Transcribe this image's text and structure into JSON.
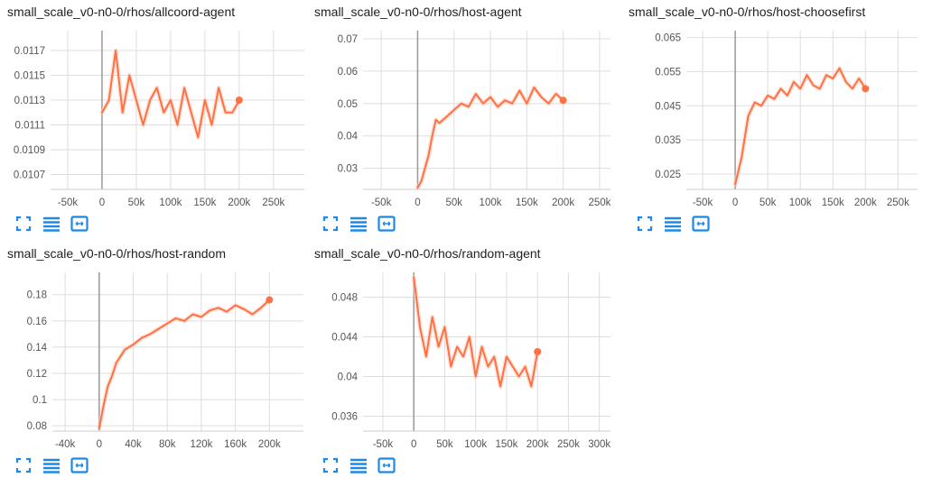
{
  "colors": {
    "line": "#ff7043",
    "raw": "#ffccbc",
    "grid": "#dddddd",
    "axis": "#999999",
    "icon": "#1e88e5"
  },
  "toolbar_icons": [
    "expand-icon",
    "data-table-icon",
    "fit-domain-icon"
  ],
  "chart_data": [
    {
      "type": "line",
      "title": "small_scale_v0-n0-0/rhos/allcoord-agent",
      "xticks": [
        -50000,
        0,
        50000,
        100000,
        150000,
        200000,
        250000
      ],
      "xtick_labels": [
        "-50k",
        "0",
        "50k",
        "100k",
        "150k",
        "200k",
        "250k"
      ],
      "yticks": [
        0.0107,
        0.0109,
        0.0111,
        0.0113,
        0.0115,
        0.0117
      ],
      "ytick_labels": [
        "0.0107",
        "0.0109",
        "0.0111",
        "0.0113",
        "0.0115",
        "0.0117"
      ],
      "xlim": [
        -75000,
        295000
      ],
      "ylim": [
        0.01058,
        0.01186
      ],
      "series": [
        {
          "x": [
            0,
            10000,
            20000,
            30000,
            40000,
            50000,
            60000,
            70000,
            80000,
            90000,
            100000,
            110000,
            120000,
            130000,
            140000,
            150000,
            160000,
            170000,
            180000,
            190000,
            200000
          ],
          "y": [
            0.0112,
            0.0113,
            0.0117,
            0.0112,
            0.0115,
            0.0113,
            0.0111,
            0.0113,
            0.0114,
            0.0112,
            0.0113,
            0.0111,
            0.0114,
            0.0112,
            0.011,
            0.0113,
            0.0111,
            0.0114,
            0.0112,
            0.0112,
            0.0113
          ]
        }
      ]
    },
    {
      "type": "line",
      "title": "small_scale_v0-n0-0/rhos/host-agent",
      "xticks": [
        -50000,
        0,
        50000,
        100000,
        150000,
        200000,
        250000
      ],
      "xtick_labels": [
        "-50k",
        "0",
        "50k",
        "100k",
        "150k",
        "200k",
        "250k"
      ],
      "yticks": [
        0.03,
        0.04,
        0.05,
        0.06,
        0.07
      ],
      "ytick_labels": [
        "0.03",
        "0.04",
        "0.05",
        "0.06",
        "0.07"
      ],
      "xlim": [
        -75000,
        265000
      ],
      "ylim": [
        0.0235,
        0.0725
      ],
      "series": [
        {
          "x": [
            0,
            5000,
            10000,
            15000,
            20000,
            25000,
            30000,
            40000,
            50000,
            60000,
            70000,
            80000,
            90000,
            100000,
            110000,
            120000,
            130000,
            140000,
            150000,
            160000,
            170000,
            180000,
            190000,
            200000
          ],
          "y": [
            0.024,
            0.026,
            0.03,
            0.034,
            0.04,
            0.045,
            0.044,
            0.046,
            0.048,
            0.05,
            0.049,
            0.053,
            0.05,
            0.052,
            0.049,
            0.051,
            0.05,
            0.054,
            0.05,
            0.055,
            0.052,
            0.05,
            0.053,
            0.051
          ]
        }
      ]
    },
    {
      "type": "line",
      "title": "small_scale_v0-n0-0/rhos/host-choosefirst",
      "xticks": [
        -50000,
        0,
        50000,
        100000,
        150000,
        200000,
        250000
      ],
      "xtick_labels": [
        "-50k",
        "0",
        "50k",
        "100k",
        "150k",
        "200k",
        "250k"
      ],
      "yticks": [
        0.025,
        0.035,
        0.045,
        0.055,
        0.065
      ],
      "ytick_labels": [
        "0.025",
        "0.035",
        "0.045",
        "0.055",
        "0.065"
      ],
      "xlim": [
        -75000,
        280000
      ],
      "ylim": [
        0.0205,
        0.067
      ],
      "series": [
        {
          "x": [
            0,
            5000,
            10000,
            15000,
            20000,
            30000,
            40000,
            50000,
            60000,
            70000,
            80000,
            90000,
            100000,
            110000,
            120000,
            130000,
            140000,
            150000,
            160000,
            170000,
            180000,
            190000,
            200000
          ],
          "y": [
            0.022,
            0.026,
            0.03,
            0.036,
            0.042,
            0.046,
            0.045,
            0.048,
            0.047,
            0.05,
            0.048,
            0.052,
            0.05,
            0.054,
            0.051,
            0.05,
            0.054,
            0.053,
            0.056,
            0.052,
            0.05,
            0.053,
            0.05
          ]
        }
      ]
    },
    {
      "type": "line",
      "title": "small_scale_v0-n0-0/rhos/host-random",
      "xticks": [
        -40000,
        0,
        40000,
        80000,
        120000,
        160000,
        200000
      ],
      "xtick_labels": [
        "-40k",
        "0",
        "40k",
        "80k",
        "120k",
        "160k",
        "200k"
      ],
      "yticks": [
        0.08,
        0.1,
        0.12,
        0.14,
        0.16,
        0.18
      ],
      "ytick_labels": [
        "0.08",
        "0.1",
        "0.12",
        "0.14",
        "0.16",
        "0.18"
      ],
      "xlim": [
        -55000,
        240000
      ],
      "ylim": [
        0.076,
        0.197
      ],
      "series": [
        {
          "x": [
            0,
            5000,
            10000,
            15000,
            20000,
            30000,
            40000,
            50000,
            60000,
            70000,
            80000,
            90000,
            100000,
            110000,
            120000,
            130000,
            140000,
            150000,
            160000,
            170000,
            180000,
            190000,
            200000
          ],
          "y": [
            0.078,
            0.095,
            0.11,
            0.118,
            0.128,
            0.138,
            0.142,
            0.147,
            0.15,
            0.154,
            0.158,
            0.162,
            0.16,
            0.165,
            0.163,
            0.168,
            0.17,
            0.167,
            0.172,
            0.169,
            0.165,
            0.17,
            0.176
          ]
        }
      ]
    },
    {
      "type": "line",
      "title": "small_scale_v0-n0-0/rhos/random-agent",
      "xticks": [
        -50000,
        0,
        50000,
        100000,
        150000,
        200000,
        250000,
        300000
      ],
      "xtick_labels": [
        "-50k",
        "0",
        "50k",
        "100k",
        "150k",
        "200k",
        "250k",
        "300k"
      ],
      "yticks": [
        0.036,
        0.04,
        0.044,
        0.048
      ],
      "ytick_labels": [
        "0.036",
        "0.04",
        "0.044",
        "0.048"
      ],
      "xlim": [
        -82000,
        318000
      ],
      "ylim": [
        0.0345,
        0.0505
      ],
      "series": [
        {
          "x": [
            0,
            10000,
            20000,
            30000,
            40000,
            50000,
            60000,
            70000,
            80000,
            90000,
            100000,
            110000,
            120000,
            130000,
            140000,
            150000,
            160000,
            170000,
            180000,
            190000,
            200000
          ],
          "y": [
            0.05,
            0.045,
            0.042,
            0.046,
            0.043,
            0.045,
            0.041,
            0.043,
            0.042,
            0.044,
            0.04,
            0.043,
            0.041,
            0.042,
            0.039,
            0.042,
            0.041,
            0.04,
            0.041,
            0.039,
            0.0425
          ]
        }
      ]
    }
  ]
}
